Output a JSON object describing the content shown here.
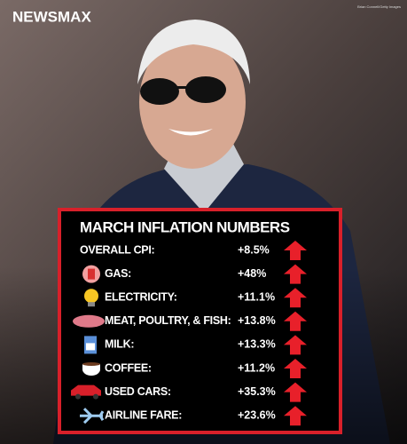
{
  "header": {
    "brand": "NEWSMAX",
    "credit": "Brian Connell/Getty Images"
  },
  "table": {
    "title": "MARCH INFLATION NUMBERS",
    "rows": [
      [
        "OVERALL CPI:",
        "+8.5%"
      ],
      [
        "GAS:",
        "+48%"
      ],
      [
        "ELECTRICITY:",
        "+11.1%"
      ],
      [
        "MEAT, POULTRY, & FISH:",
        "+13.8%"
      ],
      [
        "MILK:",
        "+13.3%"
      ],
      [
        "COFFEE:",
        "+11.2%"
      ],
      [
        "USED CARS:",
        "+35.3%"
      ],
      [
        "AIRLINE FARE:",
        "+23.6%"
      ]
    ]
  }
}
